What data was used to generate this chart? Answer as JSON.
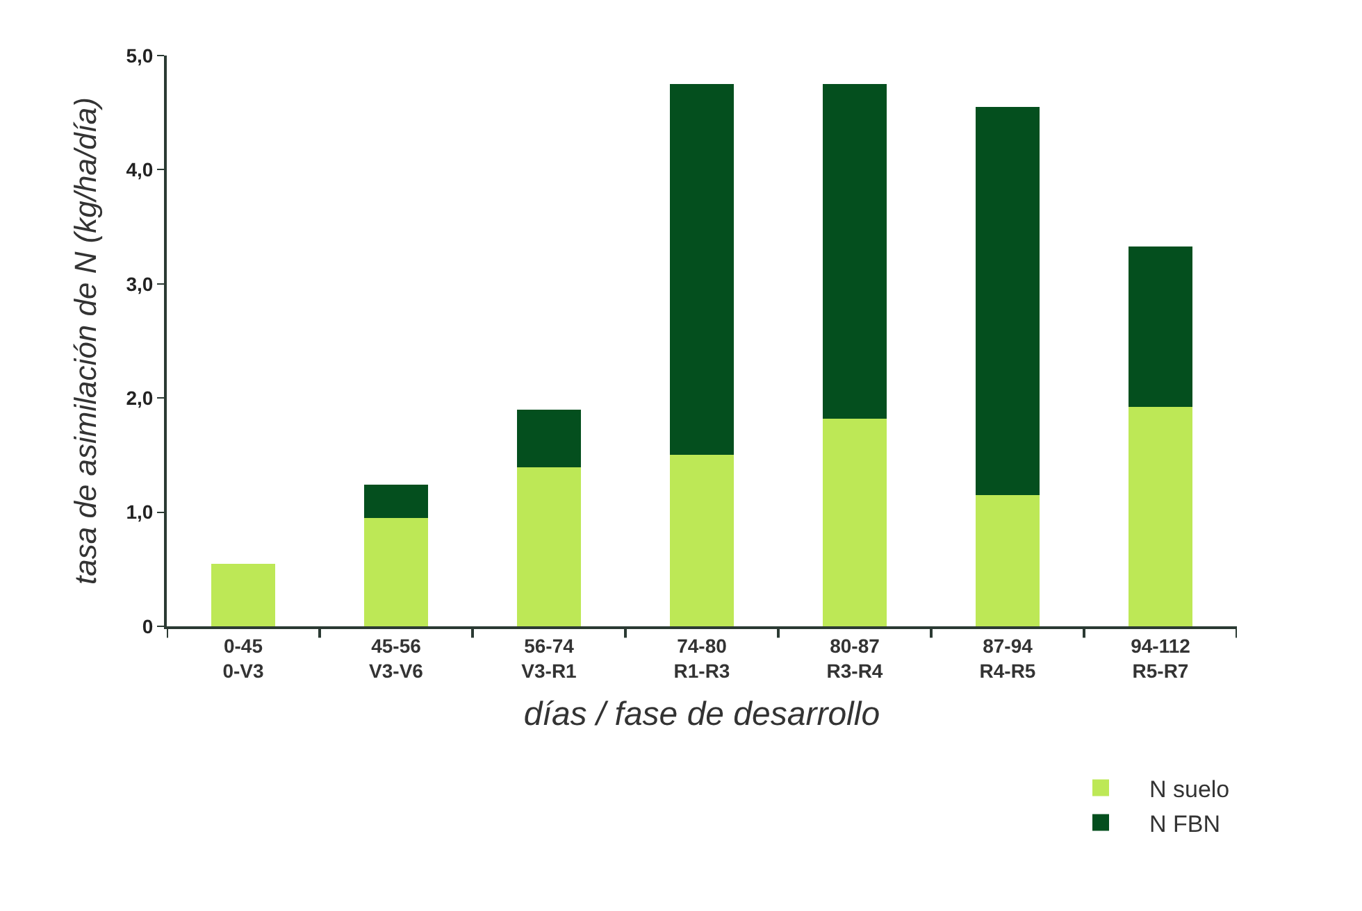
{
  "chart_data": {
    "type": "bar",
    "stacked": true,
    "xlabel": "días / fase de desarrollo",
    "ylabel": "tasa de asimilación de N (kg/ha/día)",
    "categories": [
      "0-45\n0-V3",
      "45-56\nV3-V6",
      "56-74\nV3-R1",
      "74-80\nR1-R3",
      "80-87\nR3-R4",
      "87-94\nR4-R5",
      "94-112\nR5-R7"
    ],
    "series": [
      {
        "name": "N suelo",
        "color": "#bde856",
        "values": [
          0.55,
          0.95,
          1.39,
          1.5,
          1.82,
          1.15,
          1.92
        ]
      },
      {
        "name": "N FBN",
        "color": "#044f1e",
        "values": [
          null,
          0.29,
          0.51,
          3.25,
          2.93,
          3.4,
          1.41
        ]
      }
    ],
    "ylim": [
      0,
      5
    ],
    "yticks": [
      0,
      {
        "value": 1,
        "label": "1,0"
      },
      {
        "value": 2,
        "label": "2,0"
      },
      {
        "value": 3,
        "label": "3,0"
      },
      {
        "value": 4,
        "label": "4,0"
      },
      {
        "value": 5,
        "label": "5,0"
      }
    ],
    "legend": "bottom right"
  }
}
